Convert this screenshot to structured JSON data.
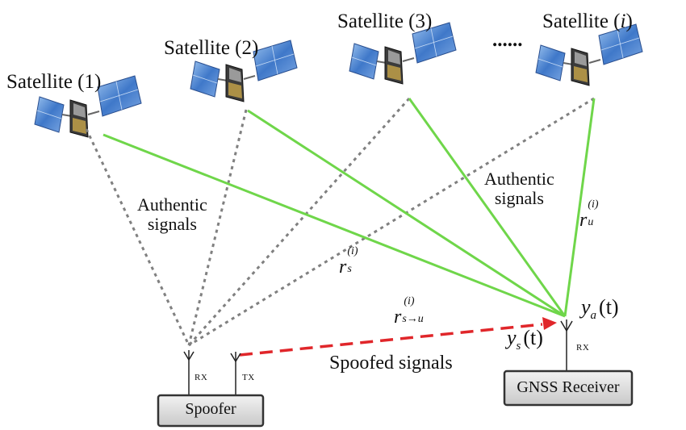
{
  "satellites": [
    {
      "name": "Satellite (1)"
    },
    {
      "name": "Satellite (2)"
    },
    {
      "name": "Satellite (3)"
    },
    {
      "name": "Satellite ",
      "index": "i"
    }
  ],
  "ellipsis": "......",
  "labels": {
    "authentic_left_1": "Authentic",
    "authentic_left_2": "signals",
    "authentic_right_1": "Authentic",
    "authentic_right_2": "signals",
    "spoofed": "Spoofed signals",
    "spoofer": "Spoofer",
    "receiver": "GNSS Receiver",
    "rx_spoofer": "RX",
    "tx_spoofer": "TX",
    "rx_receiver": "RX"
  },
  "math": {
    "r_s": {
      "base": "r",
      "sub": "s",
      "sup": "(i)"
    },
    "r_u": {
      "base": "r",
      "sub": "u",
      "sup": "(i)"
    },
    "r_su": {
      "base": "r",
      "sub": "s→u",
      "sup": "(i)"
    },
    "y_a": {
      "base": "y",
      "sub": "a",
      "arg": "(t)"
    },
    "y_s": {
      "base": "y",
      "sub": "s",
      "arg": "(t)"
    }
  },
  "colors": {
    "authentic_to_receiver": "#6fd64a",
    "authentic_to_spoofer": "#808080",
    "spoofed": "#e0262a",
    "box_fill": "#d9d9d9",
    "box_border": "#333333"
  }
}
